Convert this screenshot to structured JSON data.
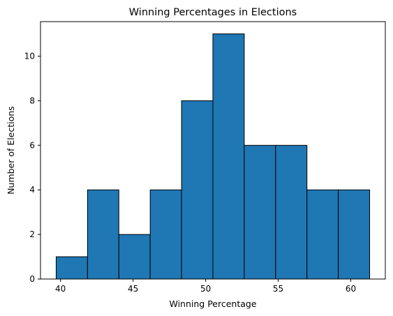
{
  "chart_data": {
    "type": "bar",
    "title": "Winning Percentages in Elections",
    "xlabel": "Winning Percentage",
    "ylabel": "Number of Elections",
    "bin_edges": [
      39.7,
      41.86,
      44.02,
      46.18,
      48.34,
      50.5,
      52.66,
      54.82,
      56.98,
      59.14,
      61.3
    ],
    "values": [
      1,
      4,
      2,
      4,
      8,
      11,
      6,
      6,
      4,
      4
    ],
    "xlim": [
      38.62,
      62.38
    ],
    "ylim": [
      0,
      11.55
    ],
    "xticks": [
      40,
      45,
      50,
      55,
      60
    ],
    "yticks": [
      0,
      2,
      4,
      6,
      8,
      10
    ],
    "bar_color": "#1f77b4",
    "edge_color": "#000000",
    "grid": false
  }
}
